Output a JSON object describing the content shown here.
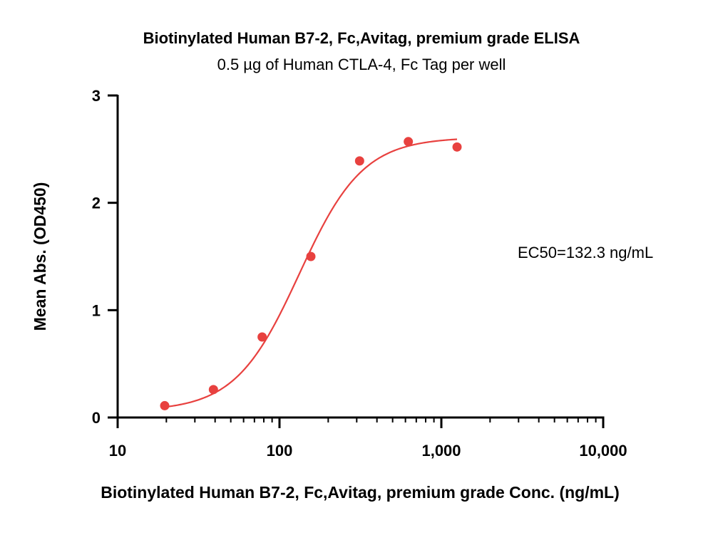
{
  "chart_data": {
    "type": "scatter",
    "title": "Biotinylated Human B7-2, Fc,Avitag, premium grade ELISA",
    "subtitle": "0.5 µg of Human CTLA-4, Fc Tag per well",
    "xlabel": "Biotinylated Human B7-2, Fc,Avitag, premium grade Conc. (ng/mL)",
    "ylabel": "Mean Abs. (OD450)",
    "xscale": "log",
    "xlim": [
      10,
      10000
    ],
    "ylim": [
      0,
      3
    ],
    "xticks": [
      10,
      100,
      1000,
      10000
    ],
    "xtick_labels": [
      "10",
      "100",
      "1,000",
      "10,000"
    ],
    "yticks": [
      0,
      1,
      2,
      3
    ],
    "ytick_labels": [
      "0",
      "1",
      "2",
      "3"
    ],
    "grid": false,
    "annotation": "EC50=132.3 ng/mL",
    "series": [
      {
        "color": "#e8413f",
        "points": [
          {
            "x": 19.53,
            "y": 0.11
          },
          {
            "x": 39.06,
            "y": 0.26
          },
          {
            "x": 78.13,
            "y": 0.75
          },
          {
            "x": 156.25,
            "y": 1.5
          },
          {
            "x": 312.5,
            "y": 2.39
          },
          {
            "x": 625,
            "y": 2.57
          },
          {
            "x": 1250,
            "y": 2.52
          }
        ],
        "fit": {
          "model": "4PL",
          "bottom": 0.06,
          "top": 2.61,
          "ec50": 132.3,
          "hill": 2.2,
          "x_range": [
            19.53,
            1250
          ]
        }
      }
    ]
  }
}
